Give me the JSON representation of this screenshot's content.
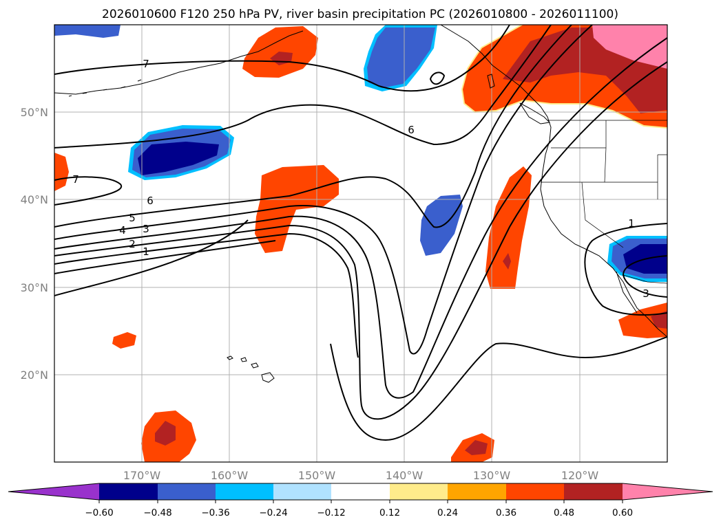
{
  "title": "2026010600 F120 250 hPa PV, river basin precipitation PC (2026010800 - 2026011100)",
  "colors": {
    "neg_extend": "#9932cc",
    "neg_060": "#00008b",
    "neg_048": "#3a5fcd",
    "neg_036": "#00bfff",
    "neg_024": "#b0e2ff",
    "neutral": "#ffffff",
    "pos_012": "#ffec8b",
    "pos_024": "#ffa500",
    "pos_036": "#ff4500",
    "pos_048": "#b22222",
    "pos_extend": "#ff82ab"
  },
  "map": {
    "lon_labels": [
      "170°W",
      "160°W",
      "150°W",
      "140°W",
      "130°W",
      "120°W"
    ],
    "lat_labels": [
      "50°N",
      "40°N",
      "30°N",
      "20°N"
    ],
    "contour_labels": [
      "7",
      "6",
      "7",
      "6",
      "5",
      "4",
      "3",
      "2",
      "1",
      "1",
      "3"
    ]
  },
  "colorbar": {
    "tick_labels": [
      "−0.60",
      "−0.48",
      "−0.36",
      "−0.24",
      "−0.12",
      "0.12",
      "0.24",
      "0.36",
      "0.48",
      "0.60"
    ]
  }
}
